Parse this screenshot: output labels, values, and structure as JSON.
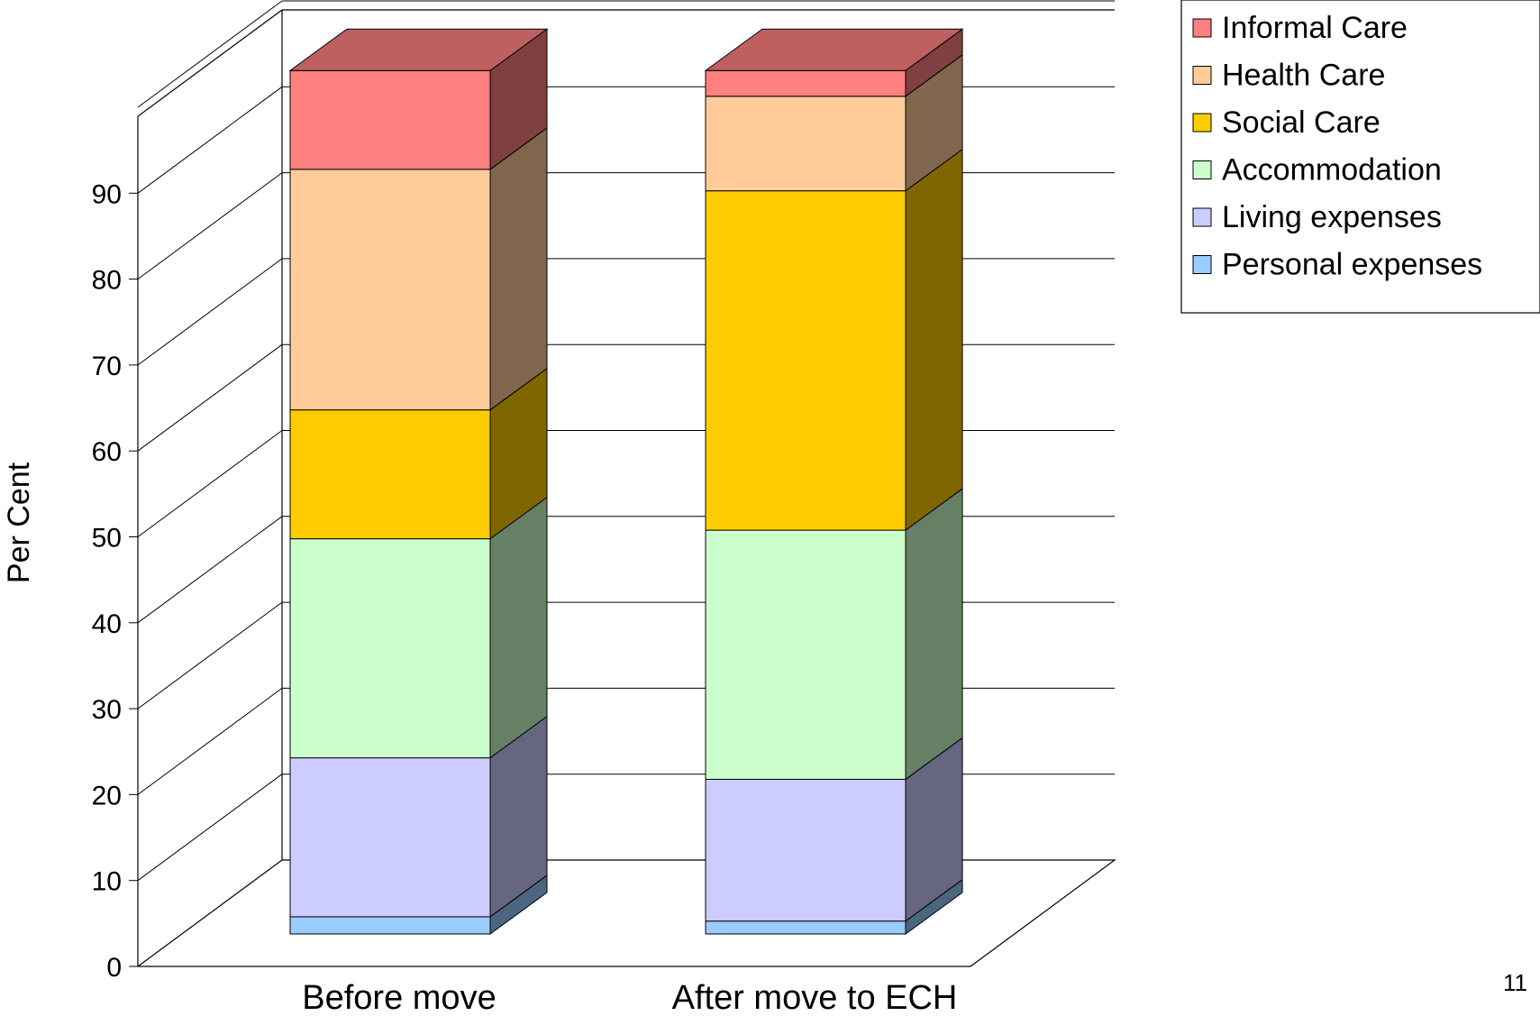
{
  "chart_data": {
    "type": "bar",
    "stacked": true,
    "three_d": true,
    "categories": [
      "Before move",
      "After move to ECH"
    ],
    "series": [
      {
        "name": "Personal expenses",
        "values": [
          2,
          1.5
        ],
        "color": "#99CCFF"
      },
      {
        "name": "Living expenses",
        "values": [
          18.5,
          16.5
        ],
        "color": "#CCCCFF"
      },
      {
        "name": "Accommodation",
        "values": [
          25.5,
          29
        ],
        "color": "#CCFFCC"
      },
      {
        "name": "Social Care",
        "values": [
          15,
          39.5
        ],
        "color": "#FFCC00"
      },
      {
        "name": "Health Care",
        "values": [
          28,
          11
        ],
        "color": "#FFCC99"
      },
      {
        "name": "Informal Care",
        "values": [
          11.5,
          3
        ],
        "color": "#FF8080"
      }
    ],
    "legend_order": [
      "Informal Care",
      "Health Care",
      "Social Care",
      "Accommodation",
      "Living expenses",
      "Personal expenses"
    ],
    "ylabel": "Per Cent",
    "xlabel": "",
    "title": "",
    "ylim": [
      0,
      100
    ],
    "y_ticks": [
      "0",
      "10",
      "20",
      "30",
      "40",
      "50",
      "60",
      "70",
      "80",
      "90"
    ],
    "grid": true,
    "legend_position": "top-right"
  },
  "page_number": "11"
}
